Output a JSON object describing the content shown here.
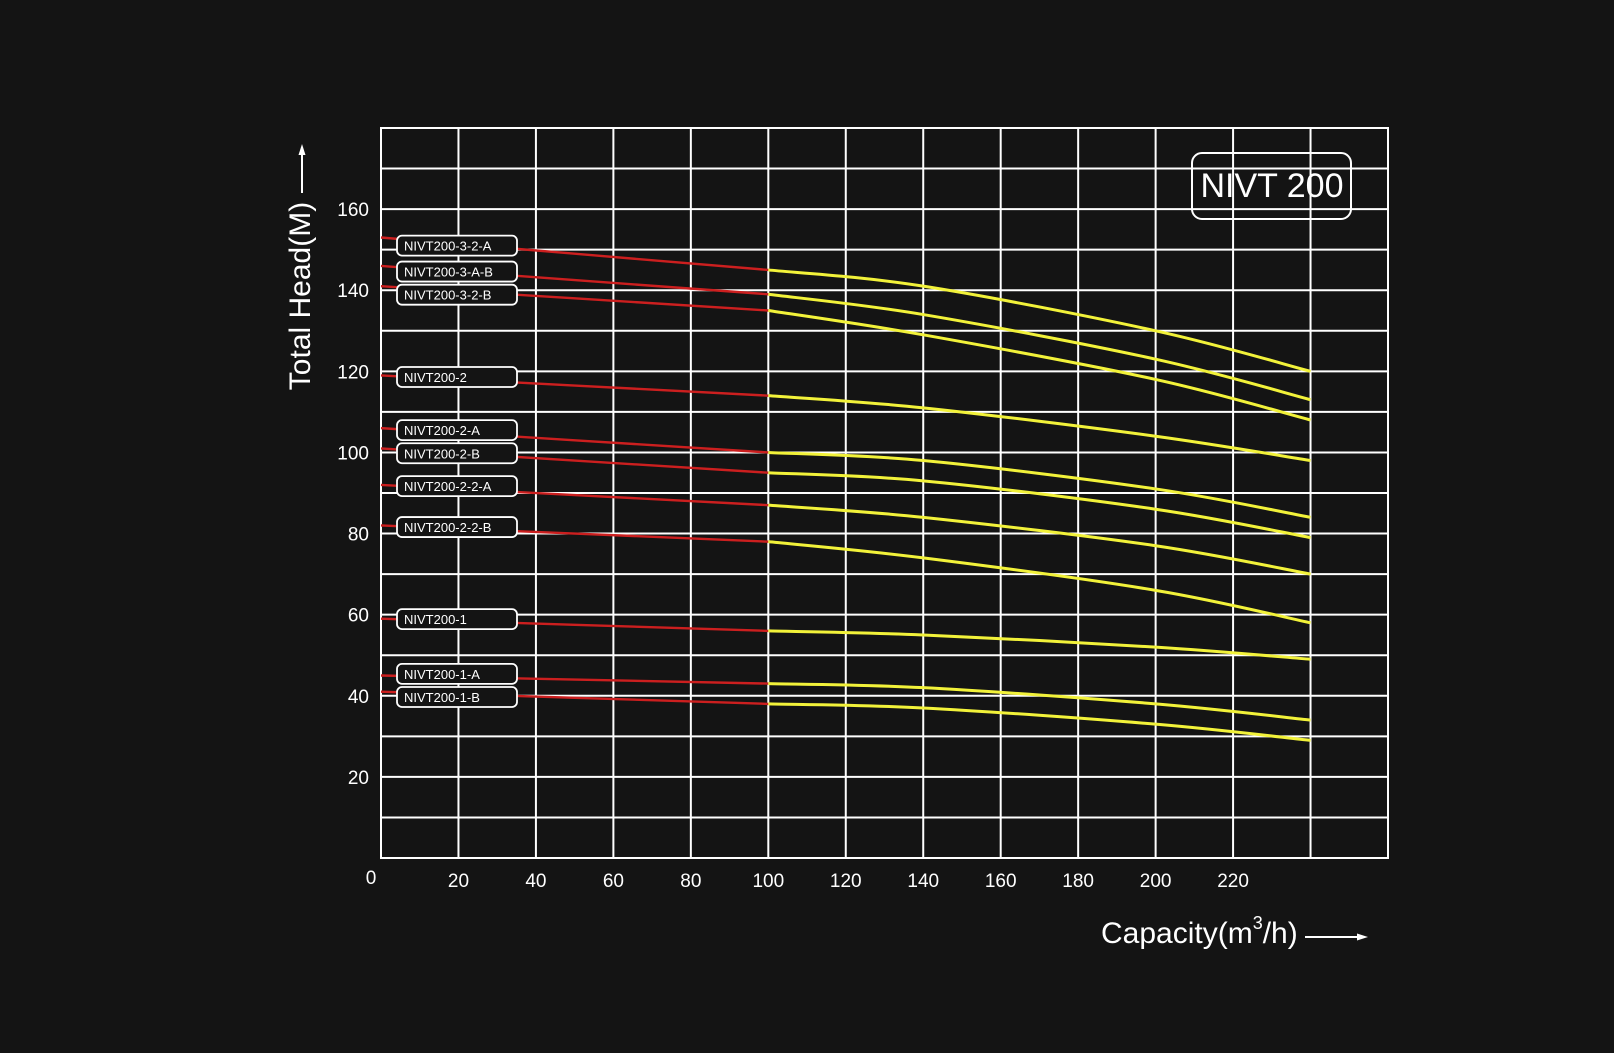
{
  "chart_data": {
    "type": "line",
    "model_box": "NIVT 200",
    "xlabel": "Capacity(m",
    "xlabel_sup": "3",
    "xlabel_suffix": "/h)",
    "ylabel": "Total Head(M)",
    "xlim": [
      0,
      260
    ],
    "ylim": [
      0,
      180
    ],
    "x_tick_labels": [
      "0",
      "20",
      "40",
      "60",
      "80",
      "100",
      "120",
      "140",
      "160",
      "180",
      "200",
      "220"
    ],
    "y_tick_labels": [
      "20",
      "40",
      "60",
      "80",
      "100",
      "120",
      "140",
      "160"
    ],
    "grid": true,
    "colors": {
      "background": "#141414",
      "grid": "#ffffff",
      "low_flow_segment": "#cc1f1f",
      "operating_segment": "#f2f23a",
      "text": "#ffffff"
    },
    "series": [
      {
        "name": "NIVT200-3-2-A",
        "x": [
          0,
          100,
          140,
          200,
          240
        ],
        "y": [
          153,
          145,
          141,
          130,
          120
        ]
      },
      {
        "name": "NIVT200-3-A-B",
        "x": [
          0,
          100,
          140,
          200,
          240
        ],
        "y": [
          146,
          139,
          134,
          123,
          113
        ]
      },
      {
        "name": "NIVT200-3-2-B",
        "x": [
          0,
          100,
          140,
          200,
          240
        ],
        "y": [
          141,
          135,
          129,
          118,
          108
        ]
      },
      {
        "name": "NIVT200-2",
        "x": [
          0,
          100,
          140,
          200,
          240
        ],
        "y": [
          119,
          114,
          111,
          104,
          98
        ]
      },
      {
        "name": "NIVT200-2-A",
        "x": [
          0,
          100,
          140,
          200,
          240
        ],
        "y": [
          106,
          100,
          98,
          91,
          84
        ]
      },
      {
        "name": "NIVT200-2-B",
        "x": [
          0,
          100,
          140,
          200,
          240
        ],
        "y": [
          101,
          95,
          93,
          86,
          79
        ]
      },
      {
        "name": "NIVT200-2-2-A",
        "x": [
          0,
          100,
          140,
          200,
          240
        ],
        "y": [
          92,
          87,
          84,
          77,
          70
        ]
      },
      {
        "name": "NIVT200-2-2-B",
        "x": [
          0,
          100,
          140,
          200,
          240
        ],
        "y": [
          82,
          78,
          74,
          66,
          58
        ]
      },
      {
        "name": "NIVT200-1",
        "x": [
          0,
          100,
          140,
          200,
          240
        ],
        "y": [
          59,
          56,
          55,
          52,
          49
        ]
      },
      {
        "name": "NIVT200-1-A",
        "x": [
          0,
          100,
          140,
          200,
          240
        ],
        "y": [
          45,
          43,
          42,
          38,
          34
        ]
      },
      {
        "name": "NIVT200-1-B",
        "x": [
          0,
          100,
          140,
          200,
          240
        ],
        "y": [
          41,
          38,
          37,
          33,
          29
        ]
      }
    ],
    "operating_range_start_x": 100,
    "label_positions_y": [
      151,
      144.6,
      138.9,
      118.6,
      105.5,
      99.8,
      91.7,
      81.6,
      58.9,
      45.4,
      39.7
    ]
  }
}
